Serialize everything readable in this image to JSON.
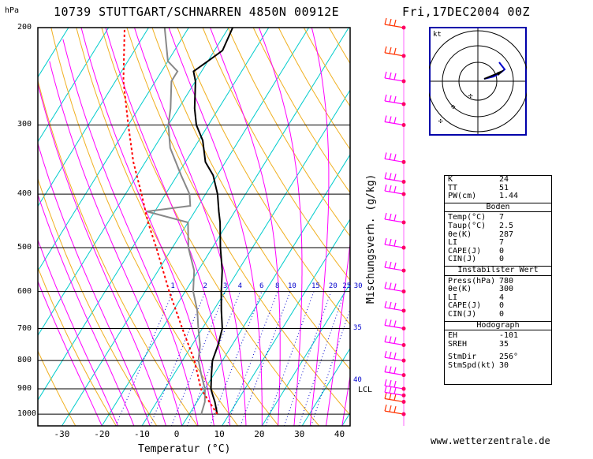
{
  "header": {
    "units": "hPa",
    "station": "10739 STUTTGART/SCHNARREN 4850N 00912E",
    "datetime": "Fri,17DEC2004 00Z"
  },
  "chart_data": {
    "type": "line",
    "subtype": "skew-T log-p diagram",
    "xlabel": "Temperatur (°C)",
    "ylabel": "Mischungsverh. (g/kg)",
    "x_ticks": [
      "-30",
      "-20",
      "-10",
      "0",
      "10",
      "20",
      "30",
      "40"
    ],
    "p_ticks": [
      "200",
      "300",
      "400",
      "500",
      "600",
      "700",
      "800",
      "900",
      "1000"
    ],
    "p_levels": [
      200,
      300,
      400,
      500,
      600,
      700,
      800,
      900,
      1000
    ],
    "xlim": [
      -36,
      42
    ],
    "plim": [
      1050,
      200
    ],
    "mixing_ratio_labels": [
      "1",
      "2",
      "3",
      "4",
      "6",
      "8",
      "10",
      "15",
      "20",
      "25",
      "30"
    ],
    "mixing_ratio_values": [
      1,
      2,
      3,
      4,
      6,
      8,
      10,
      15,
      20,
      25,
      30
    ],
    "side_labels": [
      {
        "p": 700,
        "text": "35"
      },
      {
        "p": 870,
        "text": "40"
      }
    ],
    "lcl_label": "LCL",
    "lcl_p": 905,
    "series": [
      {
        "color": "#000000",
        "points": [
          [
            1000,
            7
          ],
          [
            950,
            4.5
          ],
          [
            925,
            3
          ],
          [
            900,
            1.5
          ],
          [
            850,
            -0.5
          ],
          [
            800,
            -2.5
          ],
          [
            750,
            -3.5
          ],
          [
            700,
            -5
          ],
          [
            650,
            -8
          ],
          [
            600,
            -11
          ],
          [
            550,
            -14
          ],
          [
            500,
            -18
          ],
          [
            450,
            -22
          ],
          [
            430,
            -24
          ],
          [
            400,
            -27
          ],
          [
            370,
            -31
          ],
          [
            350,
            -35
          ],
          [
            320,
            -39
          ],
          [
            300,
            -43
          ],
          [
            280,
            -46
          ],
          [
            250,
            -50
          ],
          [
            240,
            -52
          ],
          [
            230,
            -50
          ],
          [
            220,
            -48
          ],
          [
            200,
            -49
          ]
        ]
      },
      {
        "color": "#888888",
        "points": [
          [
            1000,
            3
          ],
          [
            950,
            2
          ],
          [
            900,
            0
          ],
          [
            850,
            -3
          ],
          [
            800,
            -6
          ],
          [
            750,
            -8
          ],
          [
            700,
            -11
          ],
          [
            650,
            -14
          ],
          [
            600,
            -18
          ],
          [
            550,
            -21
          ],
          [
            500,
            -26
          ],
          [
            450,
            -30
          ],
          [
            430,
            -42
          ],
          [
            420,
            -32
          ],
          [
            400,
            -34
          ],
          [
            370,
            -39
          ],
          [
            330,
            -46
          ],
          [
            300,
            -50
          ],
          [
            280,
            -52
          ],
          [
            250,
            -56
          ],
          [
            240,
            -56
          ],
          [
            230,
            -60
          ],
          [
            200,
            -66
          ]
        ]
      },
      {
        "color": "#ff0000",
        "points": [
          [
            1000,
            7
          ],
          [
            900,
            -1
          ],
          [
            800,
            -7
          ],
          [
            700,
            -15
          ],
          [
            600,
            -24
          ],
          [
            500,
            -34
          ],
          [
            450,
            -40
          ],
          [
            400,
            -46
          ],
          [
            350,
            -53
          ],
          [
            300,
            -60
          ],
          [
            250,
            -68
          ],
          [
            200,
            -76
          ]
        ]
      }
    ],
    "grid": "isobars, isotherms, dry and moist adiabats, mixing ratio lines",
    "hodograph_label": "kt"
  },
  "indices": {
    "rows_top": [
      {
        "k": "K",
        "v": "24"
      },
      {
        "k": "TT",
        "v": "51"
      },
      {
        "k": "PW(cm)",
        "v": "1.44"
      }
    ],
    "head_boden": "Boden",
    "rows_boden": [
      {
        "k": "Temp(°C)",
        "v": "7"
      },
      {
        "k": "Taup(°C)",
        "v": "2.5"
      },
      {
        "k": "θe(K)",
        "v": "287"
      },
      {
        "k": "LI",
        "v": "7"
      },
      {
        "k": "CAPE(J)",
        "v": "0"
      },
      {
        "k": "CIN(J)",
        "v": "0"
      }
    ],
    "head_instab": "Instabilster Wert",
    "rows_instab": [
      {
        "k": "Press(hPa)",
        "v": "780"
      },
      {
        "k": "θe(K)",
        "v": "300"
      },
      {
        "k": "LI",
        "v": "4"
      },
      {
        "k": "CAPE(J)",
        "v": "0"
      },
      {
        "k": "CIN(J)",
        "v": "0"
      }
    ],
    "head_hodo": "Hodograph",
    "rows_hodo": [
      {
        "k": "EH",
        "v": "-101"
      },
      {
        "k": "SREH",
        "v": "35"
      }
    ],
    "rows_storm": [
      {
        "k": "StmDir",
        "v": "256°"
      },
      {
        "k": "StmSpd(kt)",
        "v": "30"
      }
    ]
  },
  "footer": {
    "credit": "www.wetterzentrale.de"
  },
  "colors": {
    "isotherm": "#00cccc",
    "dry_adiabat": "#f0b020",
    "moist_adiabat": "#ff00ff",
    "mixing": "#0000cc",
    "temp": "#000000",
    "dew": "#888888",
    "parcel": "#ff0000",
    "barb": "#ff66ff",
    "frame": "#0000aa"
  }
}
